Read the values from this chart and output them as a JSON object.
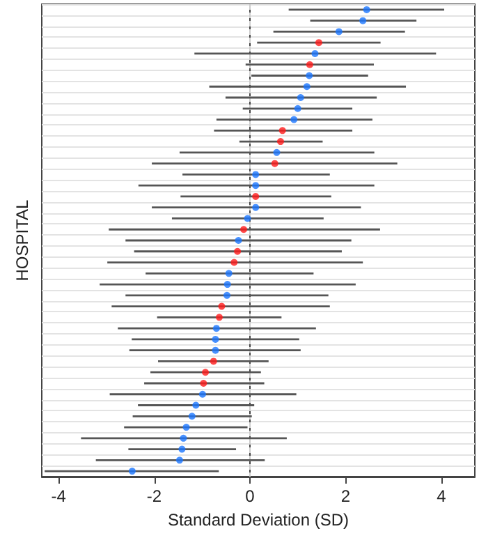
{
  "chart_data": {
    "type": "scatter",
    "orientation": "horizontal",
    "xlabel": "Standard Deviation (SD)",
    "ylabel": "HOSPITAL",
    "categories": [
      null,
      null,
      null,
      null,
      null,
      null,
      null,
      null,
      null,
      null,
      null,
      null,
      null,
      null,
      null,
      null,
      null,
      null,
      null,
      null,
      null,
      null,
      null,
      null,
      null,
      null,
      null,
      null,
      null,
      null,
      null,
      null,
      null,
      null,
      null,
      null,
      null,
      null,
      null,
      null,
      null,
      null,
      null
    ],
    "values": [
      2.44,
      2.36,
      1.86,
      1.44,
      1.36,
      1.25,
      1.24,
      1.19,
      1.06,
      1.0,
      0.92,
      0.68,
      0.64,
      0.56,
      0.52,
      0.12,
      0.12,
      0.12,
      0.12,
      -0.05,
      -0.13,
      -0.24,
      -0.26,
      -0.33,
      -0.44,
      -0.47,
      -0.48,
      -0.59,
      -0.64,
      -0.7,
      -0.72,
      -0.72,
      -0.76,
      -0.93,
      -0.97,
      -0.99,
      -1.13,
      -1.21,
      -1.33,
      -1.39,
      -1.42,
      -1.47,
      -2.46
    ],
    "errors": [
      [
        0.81,
        4.06
      ],
      [
        1.26,
        3.48
      ],
      [
        0.49,
        3.24
      ],
      [
        0.15,
        2.73
      ],
      [
        -1.16,
        3.89
      ],
      [
        -0.09,
        2.59
      ],
      [
        0.03,
        2.47
      ],
      [
        -0.85,
        3.26
      ],
      [
        -0.51,
        2.65
      ],
      [
        -0.15,
        2.14
      ],
      [
        -0.7,
        2.56
      ],
      [
        -0.75,
        2.14
      ],
      [
        -0.22,
        1.52
      ],
      [
        -1.47,
        2.6
      ],
      [
        -2.05,
        3.08
      ],
      [
        -1.41,
        1.67
      ],
      [
        -2.33,
        2.6
      ],
      [
        -1.45,
        1.7
      ],
      [
        -2.05,
        2.32
      ],
      [
        -1.63,
        1.54
      ],
      [
        -2.95,
        2.72
      ],
      [
        -2.6,
        2.12
      ],
      [
        -2.42,
        1.92
      ],
      [
        -2.98,
        2.36
      ],
      [
        -2.18,
        1.33
      ],
      [
        -3.14,
        2.21
      ],
      [
        -2.6,
        1.64
      ],
      [
        -2.89,
        1.67
      ],
      [
        -1.94,
        0.66
      ],
      [
        -2.76,
        1.38
      ],
      [
        -2.47,
        1.03
      ],
      [
        -2.52,
        1.06
      ],
      [
        -1.92,
        0.39
      ],
      [
        -2.08,
        0.23
      ],
      [
        -2.21,
        0.3
      ],
      [
        -2.93,
        0.97
      ],
      [
        -2.34,
        0.09
      ],
      [
        -2.45,
        0.04
      ],
      [
        -2.63,
        -0.05
      ],
      [
        -3.53,
        0.77
      ],
      [
        -2.54,
        -0.29
      ],
      [
        -3.22,
        0.31
      ],
      [
        -4.29,
        -0.65
      ]
    ],
    "colors": [
      "#1a75ff",
      "#1a75ff",
      "#1a75ff",
      "#ff1a1a",
      "#1a75ff",
      "#ff1a1a",
      "#1a75ff",
      "#1a75ff",
      "#1a75ff",
      "#1a75ff",
      "#1a75ff",
      "#ff1a1a",
      "#ff1a1a",
      "#1a75ff",
      "#ff1a1a",
      "#1a75ff",
      "#1a75ff",
      "#ff1a1a",
      "#1a75ff",
      "#1a75ff",
      "#ff1a1a",
      "#1a75ff",
      "#ff1a1a",
      "#ff1a1a",
      "#1a75ff",
      "#1a75ff",
      "#1a75ff",
      "#ff1a1a",
      "#ff1a1a",
      "#1a75ff",
      "#1a75ff",
      "#1a75ff",
      "#ff1a1a",
      "#ff1a1a",
      "#ff1a1a",
      "#1a75ff",
      "#1a75ff",
      "#1a75ff",
      "#1a75ff",
      "#1a75ff",
      "#1a75ff",
      "#1a75ff",
      "#1a75ff"
    ],
    "xlim": [
      -4.35,
      4.7
    ],
    "xticks": [
      -4,
      -2,
      0,
      2,
      4
    ],
    "ref_lines": [
      {
        "axis": "x",
        "value": 0,
        "label": null,
        "color": "#cccccc",
        "line_style": "dashed"
      }
    ],
    "grid": "y",
    "tick_labels": "x",
    "marker": "circle"
  }
}
